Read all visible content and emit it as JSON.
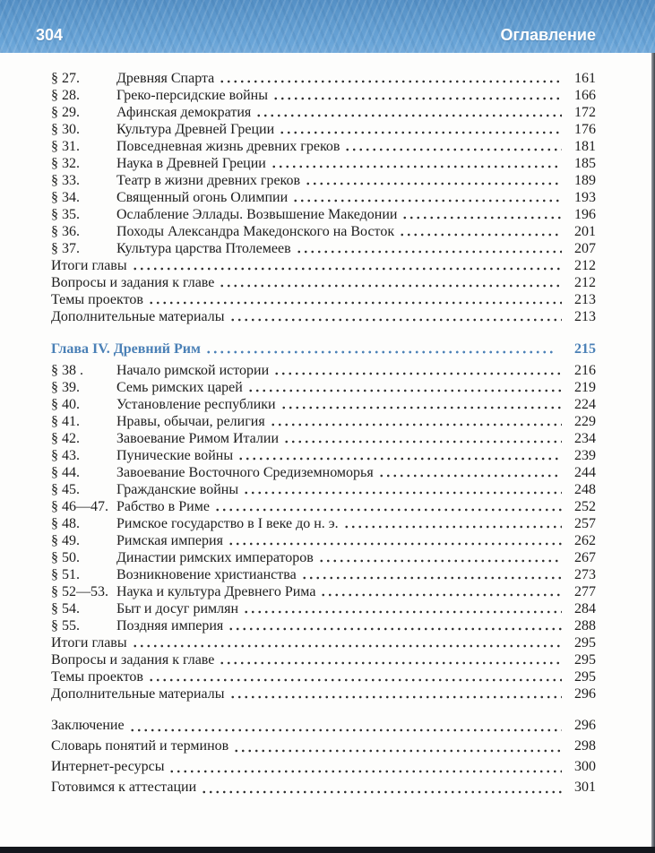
{
  "header": {
    "page_number": "304",
    "title": "Оглавление"
  },
  "colors": {
    "band_blue": "#5d9bd0",
    "heading_blue": "#4a80b6",
    "text": "#1d1d1d"
  },
  "toc": {
    "chapter3_rows": [
      {
        "label": "§ 27.",
        "title": "Древняя Спарта",
        "page": "161"
      },
      {
        "label": "§ 28.",
        "title": "Греко-персидские войны",
        "page": "166"
      },
      {
        "label": "§ 29.",
        "title": "Афинская демократия",
        "page": "172"
      },
      {
        "label": "§ 30.",
        "title": "Культура Древней Греции",
        "page": "176"
      },
      {
        "label": "§ 31.",
        "title": "Повседневная жизнь древних греков",
        "page": "181"
      },
      {
        "label": "§ 32.",
        "title": "Наука в Древней Греции",
        "page": "185"
      },
      {
        "label": "§ 33.",
        "title": "Театр в жизни древних греков",
        "page": "189"
      },
      {
        "label": "§ 34.",
        "title": "Священный огонь Олимпии",
        "page": "193"
      },
      {
        "label": "§ 35.",
        "title": "Ослабление Эллады. Возвышение Македонии",
        "page": "196"
      },
      {
        "label": "§ 36.",
        "title": "Походы Александра Македонского на Восток",
        "page": "201"
      },
      {
        "label": "§ 37.",
        "title": "Культура царства Птолемеев",
        "page": "207"
      },
      {
        "label": "",
        "title": "Итоги главы",
        "page": "212"
      },
      {
        "label": "",
        "title": "Вопросы и задания к главе",
        "page": "212"
      },
      {
        "label": "",
        "title": "Темы проектов",
        "page": "213"
      },
      {
        "label": "",
        "title": "Дополнительные материалы",
        "page": "213"
      }
    ],
    "chapter4_heading": {
      "label": "Глава IV. Древний Рим",
      "page": "215"
    },
    "chapter4_rows": [
      {
        "label": "§ 38 .",
        "title": "Начало римской истории",
        "page": "216"
      },
      {
        "label": "§ 39.",
        "title": "Семь римских царей",
        "page": "219"
      },
      {
        "label": "§ 40.",
        "title": "Установление республики",
        "page": "224"
      },
      {
        "label": "§ 41.",
        "title": "Нравы, обычаи, религия",
        "page": "229"
      },
      {
        "label": "§ 42.",
        "title": "Завоевание Римом Италии",
        "page": "234"
      },
      {
        "label": "§ 43.",
        "title": "Пунические войны",
        "page": "239"
      },
      {
        "label": "§ 44.",
        "title": "Завоевание Восточного Средиземноморья",
        "page": "244"
      },
      {
        "label": "§ 45.",
        "title": "Гражданские войны",
        "page": "248"
      },
      {
        "label": "§ 46—47.",
        "title": "Рабство в Риме",
        "page": "252"
      },
      {
        "label": "§ 48.",
        "title": "Римское государство в I веке до н. э.",
        "page": "257"
      },
      {
        "label": "§ 49.",
        "title": "Римская империя",
        "page": "262"
      },
      {
        "label": "§ 50.",
        "title": "Династии римских императоров",
        "page": "267"
      },
      {
        "label": "§ 51.",
        "title": "Возникновение христианства",
        "page": "273"
      },
      {
        "label": "§ 52—53.",
        "title": "Наука и культура Древнего Рима",
        "page": "277"
      },
      {
        "label": "§ 54.",
        "title": "Быт и досуг римлян",
        "page": "284"
      },
      {
        "label": "§ 55.",
        "title": "Поздняя империя",
        "page": "288"
      },
      {
        "label": "",
        "title": "Итоги главы",
        "page": "295"
      },
      {
        "label": "",
        "title": "Вопросы и задания к главе",
        "page": "295"
      },
      {
        "label": "",
        "title": "Темы проектов",
        "page": "295"
      },
      {
        "label": "",
        "title": "Дополнительные материалы",
        "page": "296"
      }
    ],
    "backmatter_rows": [
      {
        "label": "",
        "title": "Заключение",
        "page": "296"
      },
      {
        "label": "",
        "title": "Словарь понятий и терминов",
        "page": "298"
      },
      {
        "label": "",
        "title": "Интернет-ресурсы",
        "page": "300"
      },
      {
        "label": "",
        "title": "Готовимся к аттестации",
        "page": "301"
      }
    ]
  }
}
